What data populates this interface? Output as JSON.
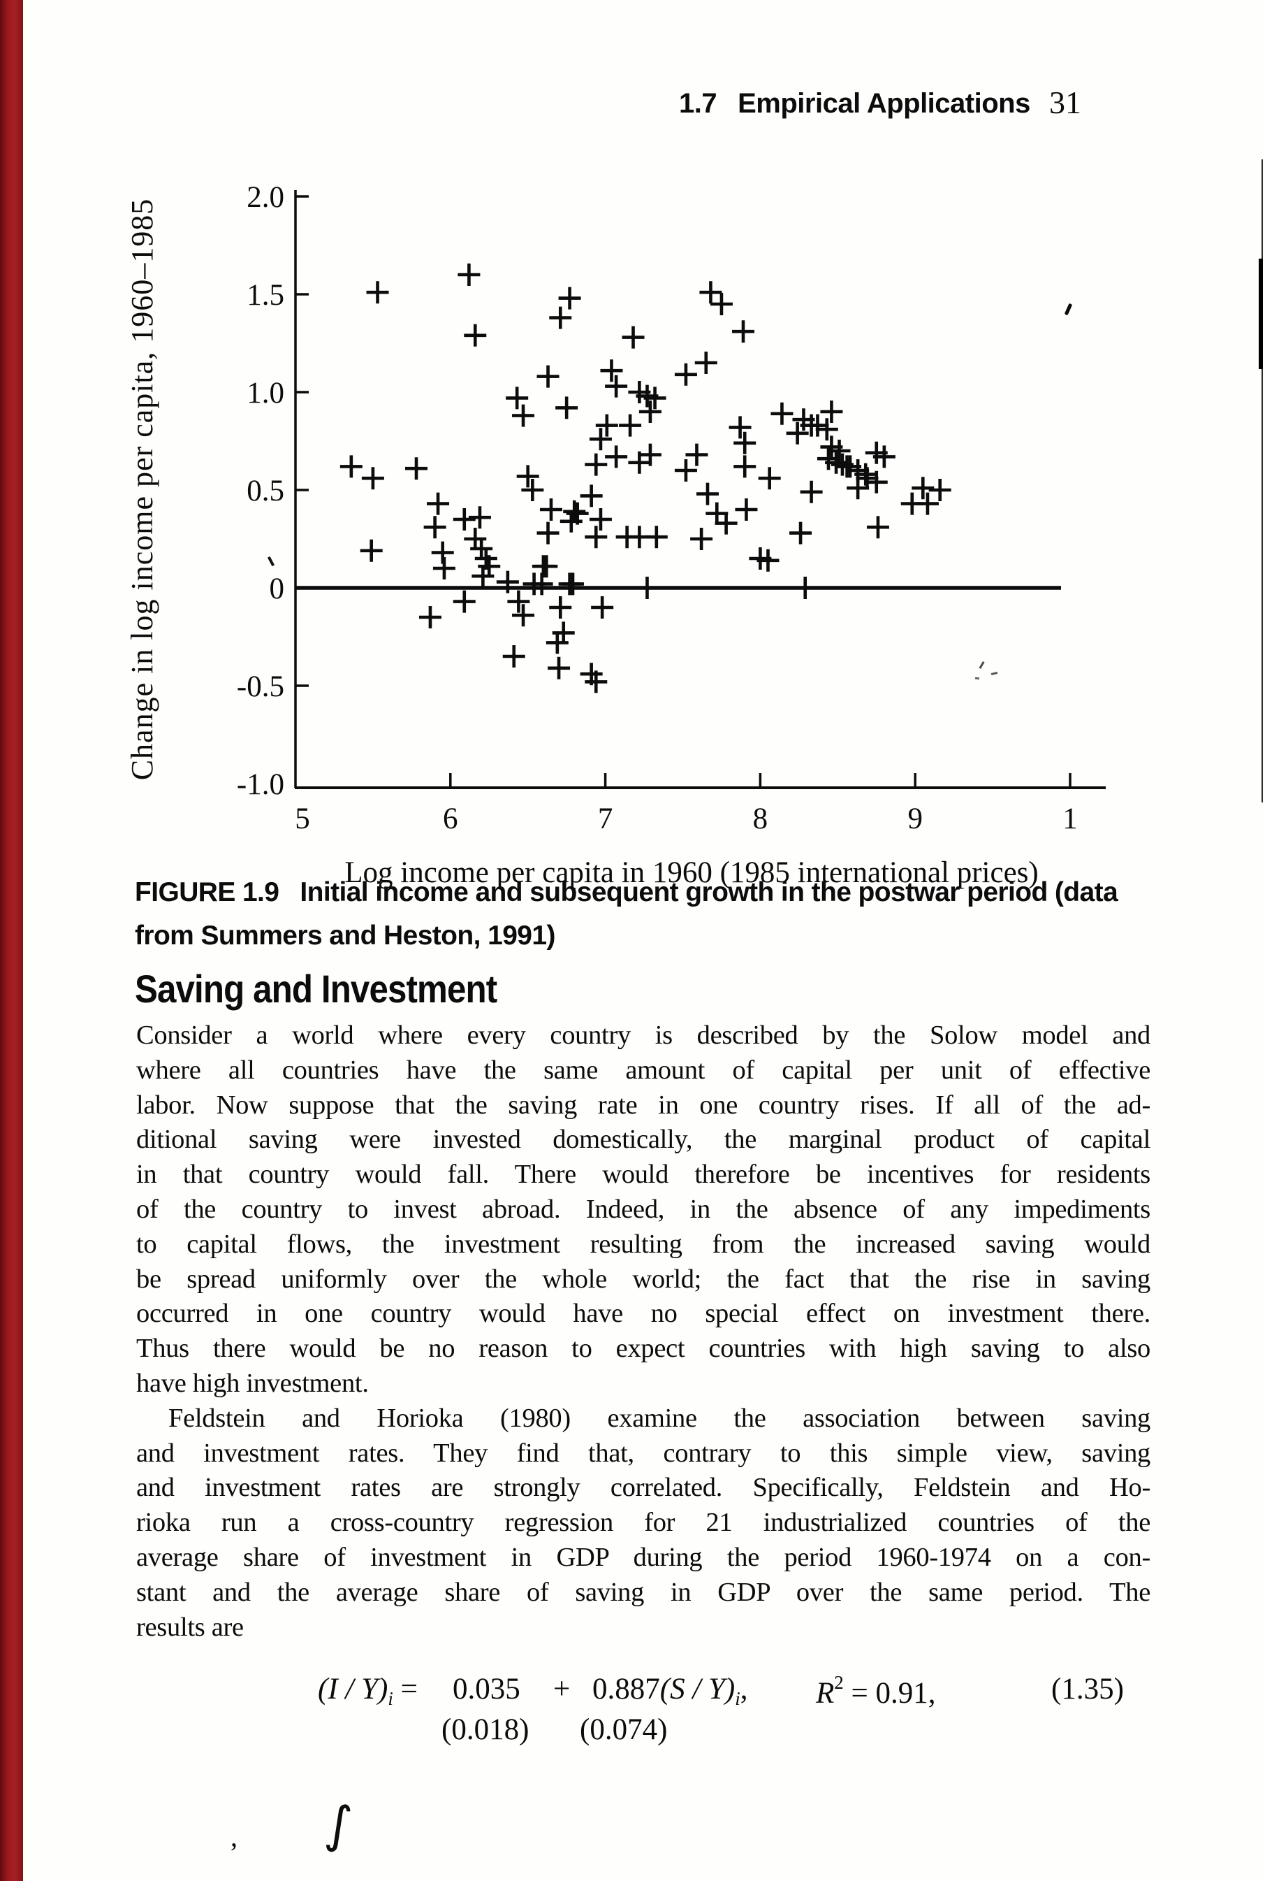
{
  "header": {
    "section": "1.7",
    "title": "Empirical Applications",
    "page_number": "31"
  },
  "figure": {
    "caption_label": "FIGURE 1.9",
    "caption_line1": "Initial income and subsequent growth in the postwar period (data",
    "caption_line2": "from Summers and Heston, 1991)"
  },
  "section": {
    "heading": "Saving and Investment"
  },
  "body": {
    "lines": [
      "Consider a world where every country is described by the Solow model and",
      "where all countries have the same amount of capital per unit of effective",
      "labor. Now suppose that the saving rate in one country rises. If all of the ad-",
      "ditional saving were invested domestically, the marginal product of capital",
      "in that country would fall. There would therefore be incentives for residents",
      "of the country to invest abroad. Indeed, in the absence of any impediments",
      "to capital flows, the investment resulting from the increased saving would",
      "be spread uniformly over the whole world; the fact that the rise in saving",
      "occurred in one country would have no special effect on investment there.",
      "Thus there would be no reason to expect countries with high saving to also",
      "have high investment.",
      "Feldstein and Horioka (1980) examine the association between saving",
      "and investment rates. They find that, contrary to this simple view, saving",
      "and investment rates are strongly correlated. Specifically, Feldstein and Ho-",
      "rioka run a cross-country regression for 21 industrialized countries of the",
      "average share of investment in GDP during the period 1960-1974 on a con-",
      "stant and the average share of saving in GDP over the same period. The",
      "results are"
    ]
  },
  "equation": {
    "term_lhs": "(I / Y)",
    "sub": "i",
    "equals": "=",
    "const": "0.035",
    "plus": "+",
    "coef": "0.887",
    "term_sy": "(S / Y)",
    "comma": ",",
    "r_var": "R",
    "r_sup": "2",
    "r_rest": "= 0.91,",
    "number": "(1.35)",
    "se_const": "(0.018)",
    "se_coef": "(0.074)"
  },
  "artifacts": {
    "comma": ",",
    "swoosh": "∫"
  },
  "colors": {
    "page_edge_red": "#a02024",
    "ink": "#0c0c0c"
  },
  "chart_data": {
    "type": "scatter",
    "title": "",
    "xlabel": "Log income per capita in 1960 (1985 international prices)",
    "ylabel": "Change in log income per capita, 1960–1985",
    "xlim": [
      5,
      10.2
    ],
    "ylim": [
      -1.0,
      2.0
    ],
    "grid": false,
    "legend": "none",
    "marker": "+",
    "zero_line": true,
    "x_ticks": [
      {
        "v": 5,
        "label": "5"
      },
      {
        "v": 6,
        "label": "6"
      },
      {
        "v": 7,
        "label": "7"
      },
      {
        "v": 8,
        "label": "8"
      },
      {
        "v": 9,
        "label": "9"
      },
      {
        "v": 10,
        "label": "1"
      }
    ],
    "y_ticks": [
      {
        "v": 2.0,
        "label": "2.0"
      },
      {
        "v": 1.5,
        "label": "1.5"
      },
      {
        "v": 1.0,
        "label": "1.0"
      },
      {
        "v": 0.5,
        "label": "0.5"
      },
      {
        "v": 0,
        "label": "0"
      },
      {
        "v": -0.5,
        "label": "-0.5"
      },
      {
        "v": -1.0,
        "label": "-1.0"
      }
    ],
    "points": [
      [
        5.36,
        0.62
      ],
      [
        5.49,
        0.19
      ],
      [
        5.5,
        0.56
      ],
      [
        5.53,
        1.51
      ],
      [
        5.78,
        0.61
      ],
      [
        5.87,
        -0.15
      ],
      [
        5.9,
        0.31
      ],
      [
        5.92,
        0.43
      ],
      [
        5.95,
        0.18
      ],
      [
        5.96,
        0.1
      ],
      [
        6.09,
        0.35
      ],
      [
        6.09,
        -0.07
      ],
      [
        6.12,
        1.6
      ],
      [
        6.16,
        1.29
      ],
      [
        6.16,
        0.25
      ],
      [
        6.19,
        0.36
      ],
      [
        6.2,
        0.2
      ],
      [
        6.21,
        0.06
      ],
      [
        6.23,
        0.15
      ],
      [
        6.25,
        0.11
      ],
      [
        6.37,
        0.03
      ],
      [
        6.41,
        -0.35
      ],
      [
        6.43,
        0.97
      ],
      [
        6.44,
        -0.07
      ],
      [
        6.47,
        0.88
      ],
      [
        6.47,
        -0.14
      ],
      [
        6.5,
        0.57
      ],
      [
        6.53,
        0.5
      ],
      [
        6.54,
        0.02
      ],
      [
        6.59,
        0.02
      ],
      [
        6.6,
        0.11
      ],
      [
        6.62,
        0.11
      ],
      [
        6.63,
        1.08
      ],
      [
        6.63,
        0.28
      ],
      [
        6.65,
        0.4
      ],
      [
        6.7,
        -0.41
      ],
      [
        6.71,
        1.38
      ],
      [
        6.71,
        -0.1
      ],
      [
        6.73,
        -0.23
      ],
      [
        6.69,
        -0.28
      ],
      [
        6.75,
        0.92
      ],
      [
        6.77,
        1.48
      ],
      [
        6.77,
        0.02
      ],
      [
        6.79,
        0.02
      ],
      [
        6.78,
        0.34
      ],
      [
        6.8,
        0.39
      ],
      [
        6.82,
        0.38
      ],
      [
        6.91,
        0.47
      ],
      [
        6.91,
        -0.44
      ],
      [
        6.94,
        -0.48
      ],
      [
        6.94,
        0.26
      ],
      [
        6.94,
        0.63
      ],
      [
        6.97,
        0.76
      ],
      [
        6.97,
        0.35
      ],
      [
        6.98,
        -0.1
      ],
      [
        7.01,
        0.83
      ],
      [
        7.04,
        1.11
      ],
      [
        7.07,
        1.03
      ],
      [
        7.07,
        0.67
      ],
      [
        7.14,
        0.26
      ],
      [
        7.16,
        0.83
      ],
      [
        7.18,
        1.28
      ],
      [
        7.22,
        1.0
      ],
      [
        7.22,
        0.64
      ],
      [
        7.22,
        0.26
      ],
      [
        7.27,
        0.98
      ],
      [
        7.27,
        0.0
      ],
      [
        7.29,
        0.9
      ],
      [
        7.29,
        0.68
      ],
      [
        7.32,
        0.97
      ],
      [
        7.33,
        0.26
      ],
      [
        7.52,
        1.09
      ],
      [
        7.52,
        0.6
      ],
      [
        7.59,
        0.68
      ],
      [
        7.62,
        0.25
      ],
      [
        7.65,
        1.15
      ],
      [
        7.66,
        0.48
      ],
      [
        7.68,
        1.51
      ],
      [
        7.72,
        0.38
      ],
      [
        7.75,
        1.45
      ],
      [
        7.78,
        0.33
      ],
      [
        7.87,
        0.82
      ],
      [
        7.89,
        1.31
      ],
      [
        7.9,
        0.74
      ],
      [
        7.9,
        0.62
      ],
      [
        7.91,
        0.4
      ],
      [
        8.0,
        0.15
      ],
      [
        8.05,
        0.14
      ],
      [
        8.06,
        0.56
      ],
      [
        8.14,
        0.89
      ],
      [
        8.24,
        0.79
      ],
      [
        8.26,
        0.28
      ],
      [
        8.28,
        0.86
      ],
      [
        8.29,
        0.0
      ],
      [
        8.33,
        0.83
      ],
      [
        8.37,
        0.83
      ],
      [
        8.33,
        0.49
      ],
      [
        8.43,
        0.81
      ],
      [
        8.44,
        0.66
      ],
      [
        8.46,
        0.9
      ],
      [
        8.46,
        0.72
      ],
      [
        8.49,
        0.64
      ],
      [
        8.51,
        0.7
      ],
      [
        8.53,
        0.63
      ],
      [
        8.56,
        0.62
      ],
      [
        8.58,
        0.62
      ],
      [
        8.63,
        0.6
      ],
      [
        8.63,
        0.51
      ],
      [
        8.68,
        0.58
      ],
      [
        8.69,
        0.56
      ],
      [
        8.75,
        0.54
      ],
      [
        8.75,
        0.69
      ],
      [
        8.76,
        0.31
      ],
      [
        8.8,
        0.67
      ],
      [
        8.98,
        0.43
      ],
      [
        9.05,
        0.51
      ],
      [
        9.08,
        0.43
      ],
      [
        9.16,
        0.5
      ]
    ]
  }
}
